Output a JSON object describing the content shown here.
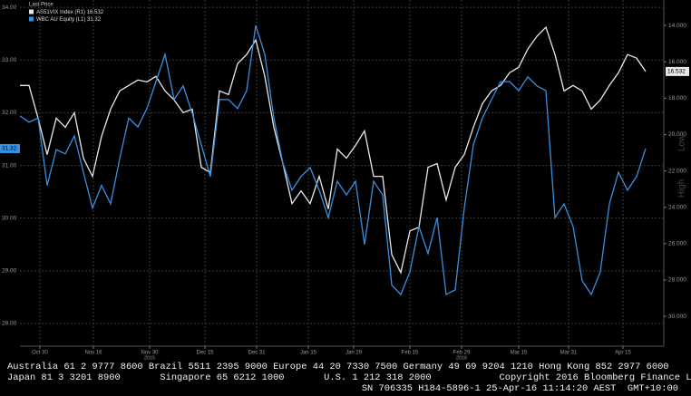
{
  "chart_data": {
    "type": "line",
    "legend_title": "Last Price",
    "xlim": [
      0,
      71
    ],
    "xticks": [
      {
        "value": 2.2,
        "label": "Oct 30"
      },
      {
        "value": 8.1,
        "label": "Nov 16"
      },
      {
        "value": 14.3,
        "label": "Nov 30"
      },
      {
        "value": 20.4,
        "label": "Dec 15"
      },
      {
        "value": 26.1,
        "label": "Dec 31"
      },
      {
        "value": 31.8,
        "label": "Jan 15"
      },
      {
        "value": 36.8,
        "label": "Jan 29"
      },
      {
        "value": 43,
        "label": "Feb 15"
      },
      {
        "value": 48.7,
        "label": "Feb 29"
      },
      {
        "value": 55,
        "label": "Mar 15"
      },
      {
        "value": 60.5,
        "label": "Mar 31"
      },
      {
        "value": 66.5,
        "label": "Apr 15"
      }
    ],
    "x_year_labels": [
      {
        "value": 14.3,
        "label": "2015"
      },
      {
        "value": 48.7,
        "label": "2016"
      }
    ],
    "ylim": [
      27.57,
      34.14
    ],
    "yticks": [
      {
        "value": 28,
        "label": "28.00"
      },
      {
        "value": 29,
        "label": "29.00"
      },
      {
        "value": 30,
        "label": "30.00"
      },
      {
        "value": 31,
        "label": "31.00"
      },
      {
        "value": 32,
        "label": "32.00"
      },
      {
        "value": 33,
        "label": "33.00"
      },
      {
        "value": 34,
        "label": "34.00"
      }
    ],
    "y2lim": [
      31.64,
      12.6
    ],
    "y2ticks": [
      {
        "value": 14,
        "label": "14.000"
      },
      {
        "value": 16,
        "label": "16.000"
      },
      {
        "value": 18,
        "label": "18.000"
      },
      {
        "value": 20,
        "label": "20.000"
      },
      {
        "value": 22,
        "label": "22.000"
      },
      {
        "value": 24,
        "label": "24.000"
      },
      {
        "value": 26,
        "label": "26.000"
      },
      {
        "value": 28,
        "label": "28.000"
      },
      {
        "value": 30,
        "label": "30.000"
      }
    ],
    "y2_annotations": [
      "Low",
      "High"
    ],
    "grid": true,
    "series": [
      {
        "name": "AS51VIX Index (R1)",
        "color": "#e8e8e8",
        "axis": "y2",
        "values": [
          17.3,
          17.3,
          19.1,
          21.1,
          19.1,
          19.6,
          18.8,
          21.3,
          22.3,
          20.1,
          18.6,
          17.6,
          17.3,
          17.0,
          17.1,
          16.8,
          17.6,
          18.1,
          18.8,
          18.6,
          21.8,
          22.1,
          17.6,
          17.8,
          16.1,
          15.6,
          14.8,
          16.8,
          19.6,
          21.6,
          23.8,
          23.1,
          23.8,
          22.3,
          24.1,
          20.8,
          21.3,
          20.6,
          19.8,
          22.3,
          22.3,
          26.6,
          27.6,
          25.3,
          25.1,
          21.8,
          21.6,
          23.6,
          21.8,
          21.1,
          19.6,
          18.3,
          17.6,
          17.3,
          16.6,
          16.3,
          15.3,
          14.6,
          14.1,
          15.6,
          17.6,
          17.3,
          17.6,
          18.6,
          18.1,
          17.3,
          16.6,
          15.6,
          15.8,
          16.532
        ]
      },
      {
        "name": "WBC AU Equity (L1)",
        "color": "#3a8fe0",
        "values": [
          31.94,
          31.82,
          31.9,
          30.62,
          31.3,
          31.22,
          31.56,
          30.87,
          30.19,
          30.62,
          30.27,
          31.13,
          31.9,
          31.73,
          32.08,
          32.59,
          33.11,
          32.25,
          32.51,
          31.99,
          31.39,
          30.79,
          32.25,
          32.25,
          32.08,
          32.42,
          33.66,
          33.11,
          31.9,
          31.04,
          30.53,
          30.79,
          30.96,
          30.53,
          30.01,
          30.7,
          30.44,
          30.7,
          29.5,
          30.7,
          30.44,
          28.73,
          28.55,
          28.98,
          29.84,
          29.33,
          30.01,
          28.55,
          28.64,
          30.19,
          31.39,
          31.9,
          32.25,
          32.59,
          32.59,
          32.42,
          32.68,
          32.51,
          32.42,
          30.01,
          30.27,
          29.84,
          28.81,
          28.55,
          28.98,
          30.27,
          30.87,
          30.53,
          30.79,
          31.32
        ]
      }
    ]
  },
  "footer": {
    "lines": [
      "Australia 61 2 9777 8600 Brazil 5511 2395 9000 Europe 44 20 7330 7500 Germany 49 69 9204 1210 Hong Kong 852 2977 6000",
      "Japan 81 3 3201 8900       Singapore 65 6212 1000       U.S. 1 212 318 2000            Copyright 2016 Bloomberg Finance L.P.",
      "SN 706335 H184-5896-1 25-Apr-16 11:14:20 AEST  GMT+10:00"
    ]
  }
}
